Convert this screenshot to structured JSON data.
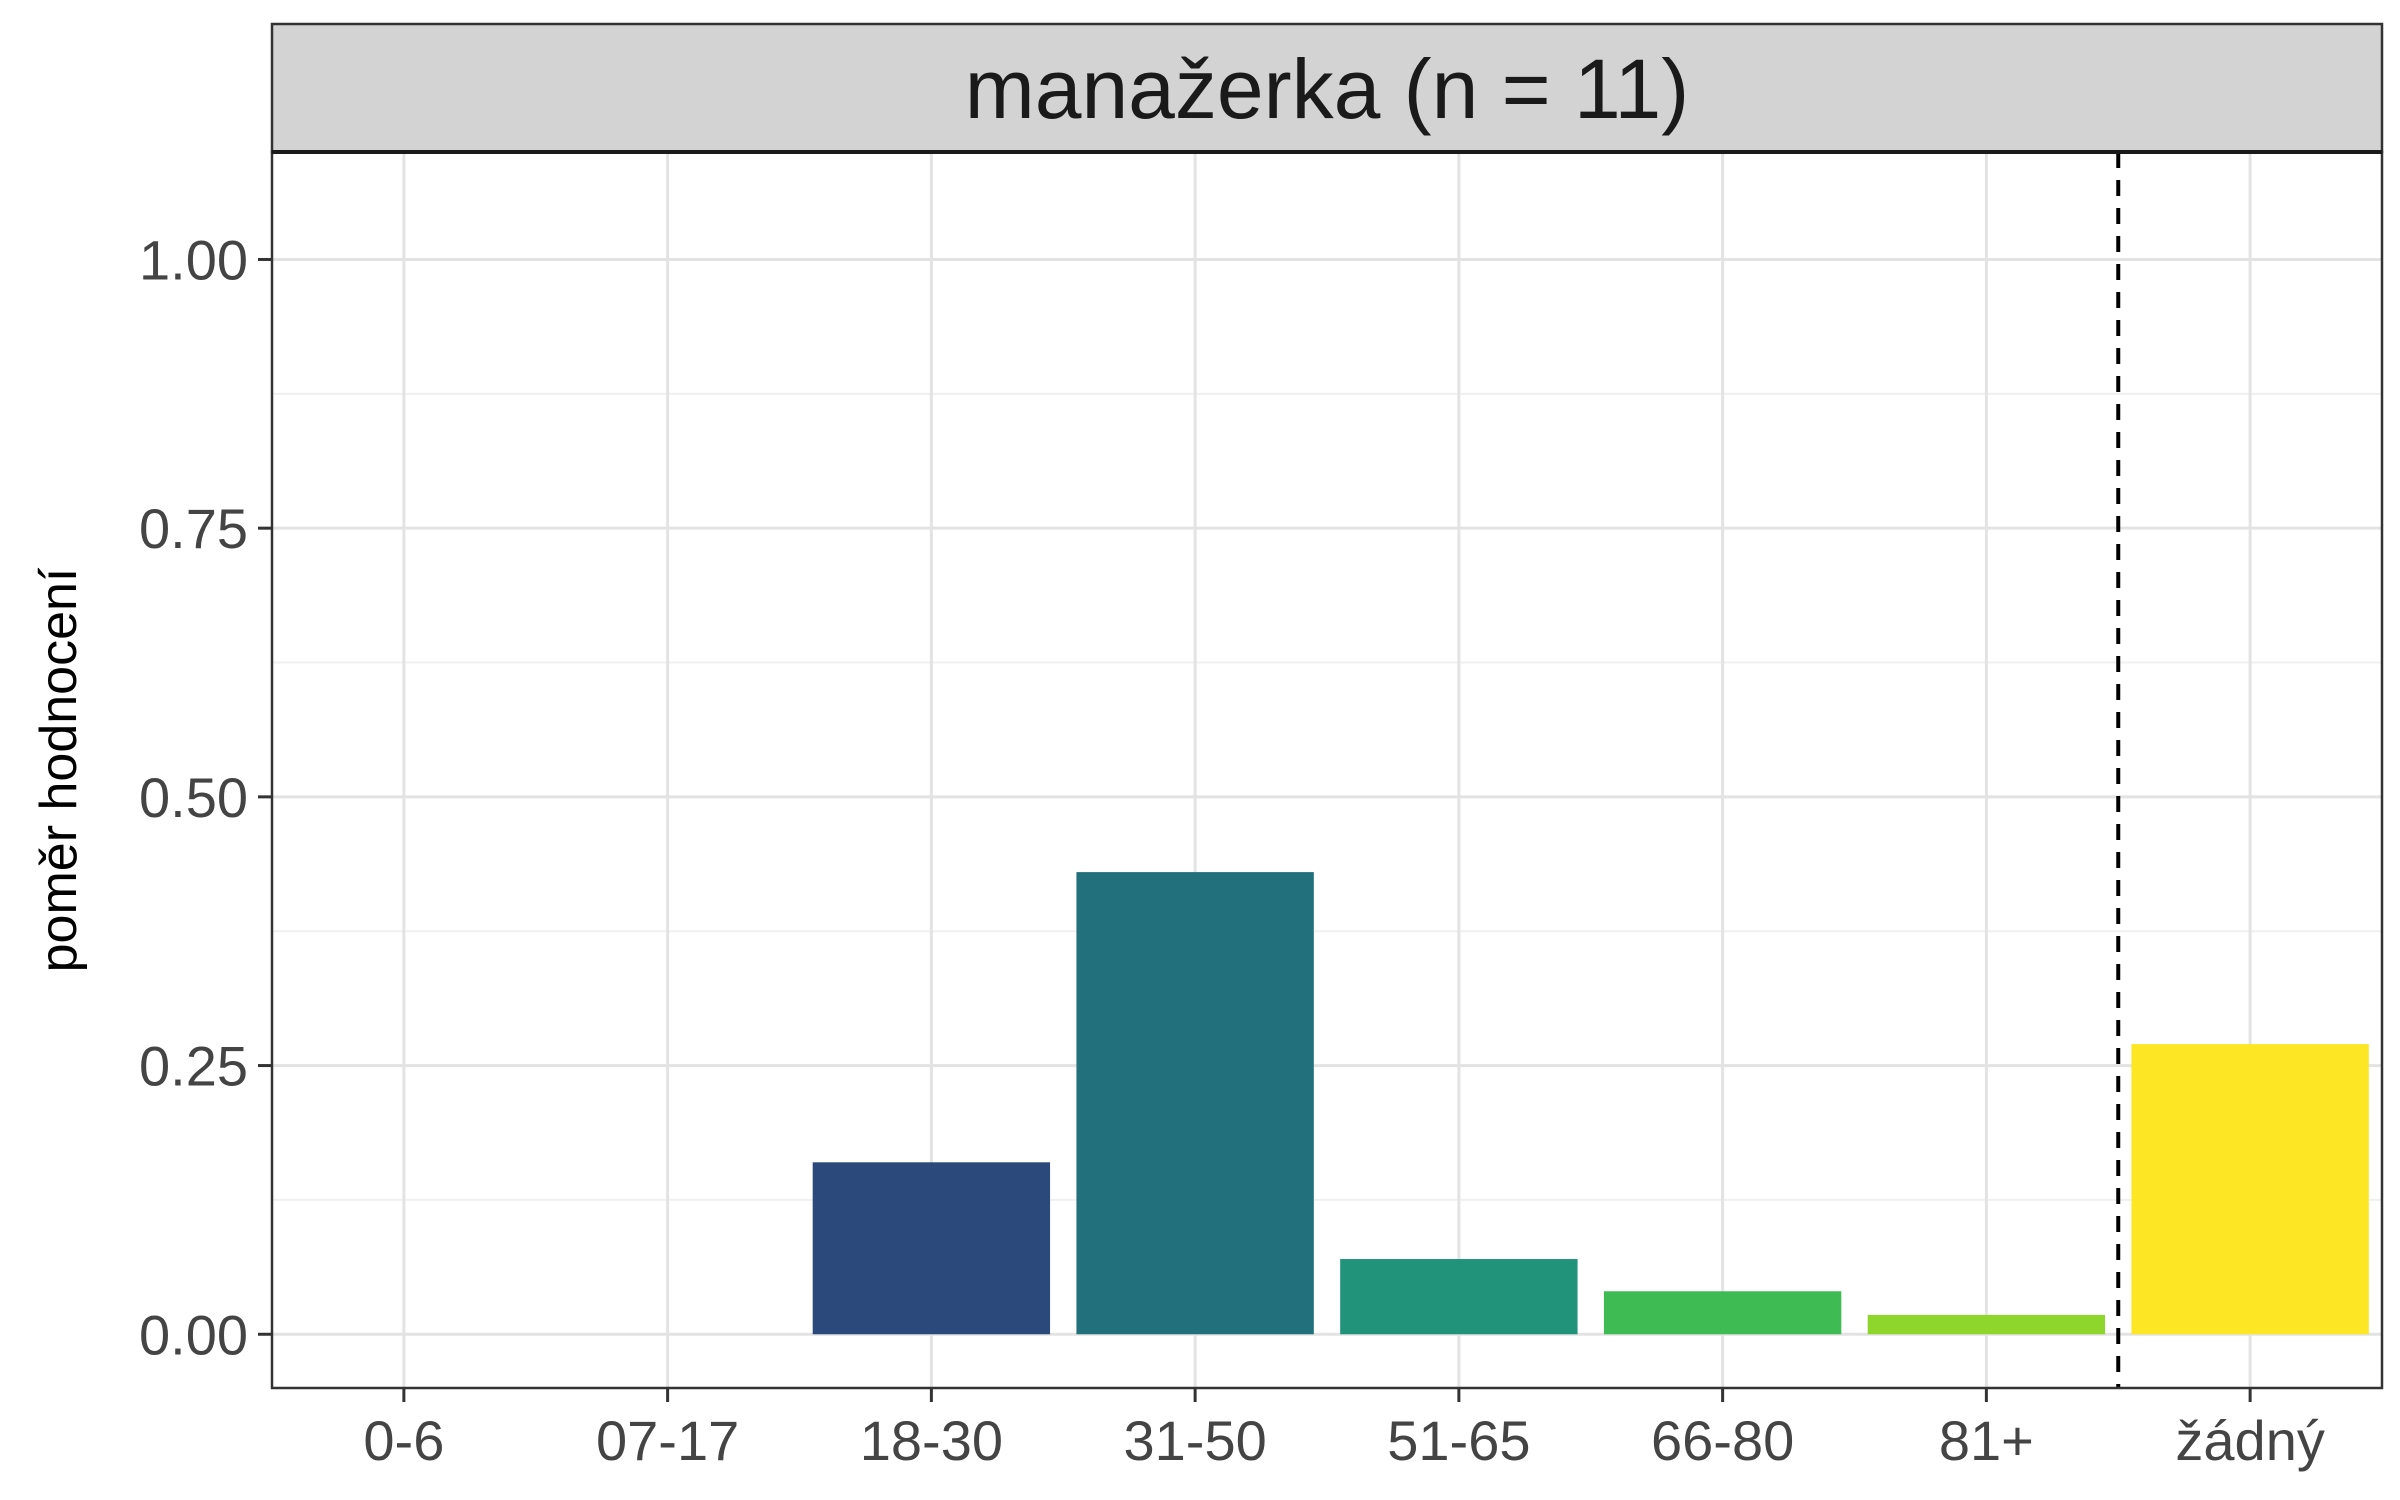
{
  "chart_data": {
    "type": "bar",
    "title": "manažerka (n = 11)",
    "xlabel": "",
    "ylabel": "poměr hodnocení",
    "categories": [
      "0-6",
      "07-17",
      "18-30",
      "31-50",
      "51-65",
      "66-80",
      "81+",
      "žádný"
    ],
    "values": [
      0,
      0,
      0.16,
      0.43,
      0.07,
      0.04,
      0.018,
      0.27
    ],
    "colors": [
      "#440154",
      "#46337E",
      "#2B4A7B",
      "#21707B",
      "#20937A",
      "#3FBB54",
      "#8ED52C",
      "#FDE725"
    ],
    "ylim": [
      -0.05,
      1.1
    ],
    "yticks": [
      0,
      0.25,
      0.5,
      0.75,
      1.0
    ],
    "ytick_labels": [
      "0.00",
      "0.25",
      "0.50",
      "0.75",
      "1.00"
    ],
    "reference_line": {
      "style": "dashed",
      "between_categories": [
        "81+",
        "žádný"
      ]
    },
    "grid": true,
    "legend": "none"
  }
}
